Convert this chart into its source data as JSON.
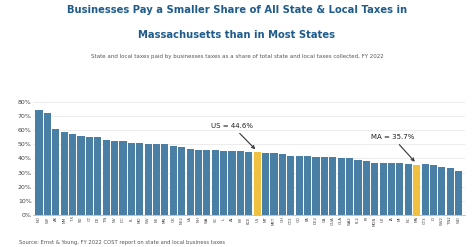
{
  "title_line1": "Businesses Pay a Smaller Share of All State & Local Taxes in",
  "title_line2": "Massachusetts than in Most States",
  "subtitle": "State and local taxes paid by businesses taxes as a share of total state and local taxes collected, FY 2022",
  "source": "Source: Ernst & Young, FY 2022 COST report on state and local business taxes",
  "ylim": [
    0,
    0.84
  ],
  "yticks": [
    0,
    0.1,
    0.2,
    0.3,
    0.4,
    0.5,
    0.6,
    0.7,
    0.8
  ],
  "bar_color": "#4a7fa5",
  "highlight_color": "#f0c040",
  "us_annotation": "US = 44.6%",
  "ma_annotation": "MA = 35.7%",
  "states": [
    "ND",
    "WY",
    "AK",
    "NM",
    "TX",
    "SD",
    "CT",
    "DE",
    "TN",
    "NV",
    "DC",
    "FL",
    "MO",
    "WV",
    "NE",
    "MN",
    "OK",
    "NE2",
    "LA",
    "NH",
    "WA",
    "SC",
    "IL",
    "AL",
    "NY",
    "KCE",
    "US",
    "MT",
    "MET",
    "OH",
    "CT2",
    "CO",
    "PA",
    "DE2",
    "CA",
    "GUA",
    "GLA",
    "WA2",
    "FL2",
    "RI",
    "MON",
    "UT",
    "IA",
    "MI",
    "NC",
    "MA",
    "CT3",
    "ID",
    "WV2",
    "TN2",
    "WD"
  ],
  "values": [
    0.74,
    0.72,
    0.61,
    0.59,
    0.57,
    0.56,
    0.55,
    0.55,
    0.53,
    0.52,
    0.52,
    0.51,
    0.51,
    0.5,
    0.5,
    0.5,
    0.49,
    0.48,
    0.47,
    0.46,
    0.46,
    0.46,
    0.45,
    0.45,
    0.45,
    0.446,
    0.446,
    0.44,
    0.44,
    0.43,
    0.42,
    0.42,
    0.42,
    0.41,
    0.41,
    0.41,
    0.4,
    0.4,
    0.39,
    0.38,
    0.37,
    0.37,
    0.37,
    0.37,
    0.36,
    0.357,
    0.36,
    0.35,
    0.34,
    0.33,
    0.31
  ],
  "us_index": 26,
  "ma_index": 45,
  "background_color": "#ffffff",
  "title_color": "#1f5c8b",
  "subtitle_color": "#555555",
  "source_color": "#555555"
}
